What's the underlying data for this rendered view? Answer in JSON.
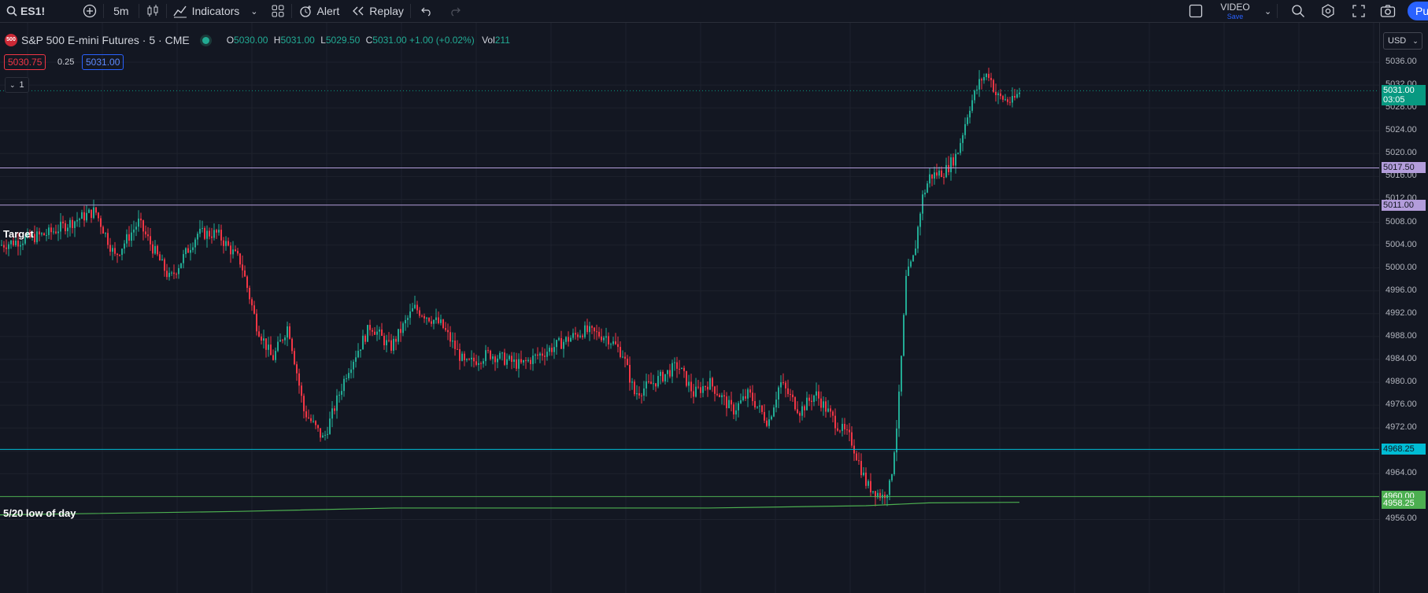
{
  "toolbar": {
    "symbol": "ES1!",
    "interval": "5m",
    "indicators": "Indicators",
    "alert": "Alert",
    "replay": "Replay",
    "video_title": "VIDEO",
    "video_sub": "Save",
    "publish": "Pu"
  },
  "legend": {
    "badge": "500",
    "title": "S&P 500 E-mini Futures · 5 · CME",
    "o_k": "O",
    "o_v": "5030.00",
    "h_k": "H",
    "h_v": "5031.00",
    "l_k": "L",
    "l_v": "5029.50",
    "c_k": "C",
    "c_v": "5031.00 +1.00 (+0.02%)",
    "vol_k": "Vol",
    "vol_v": "211",
    "sell": "5030.75",
    "spread": "0.25",
    "buy": "5031.00",
    "collapse": "1"
  },
  "currency": "USD",
  "labels": {
    "target": "Target",
    "low": "5/20 low of day"
  },
  "axis": {
    "ticks": [
      "5036.00",
      "5032.00",
      "5028.00",
      "5024.00",
      "5020.00",
      "5016.00",
      "5012.00",
      "5008.00",
      "5004.00",
      "5000.00",
      "4996.00",
      "4992.00",
      "4988.00",
      "4984.00",
      "4980.00",
      "4976.00",
      "4972.00",
      "4968.00",
      "4964.00",
      "4960.00",
      "4956.00"
    ],
    "price": "5031.00",
    "countdown": "03:05",
    "line1": "5017.50",
    "line2": "5011.00",
    "line3": "4968.25",
    "line4": "4960.00",
    "line5": "4958.25"
  },
  "colors": {
    "up": "#22ab94",
    "down": "#f23645",
    "line_target": "#b39ddb",
    "line_low": "#00bcd4",
    "line_green": "#4caf50",
    "current": "#089981"
  }
}
